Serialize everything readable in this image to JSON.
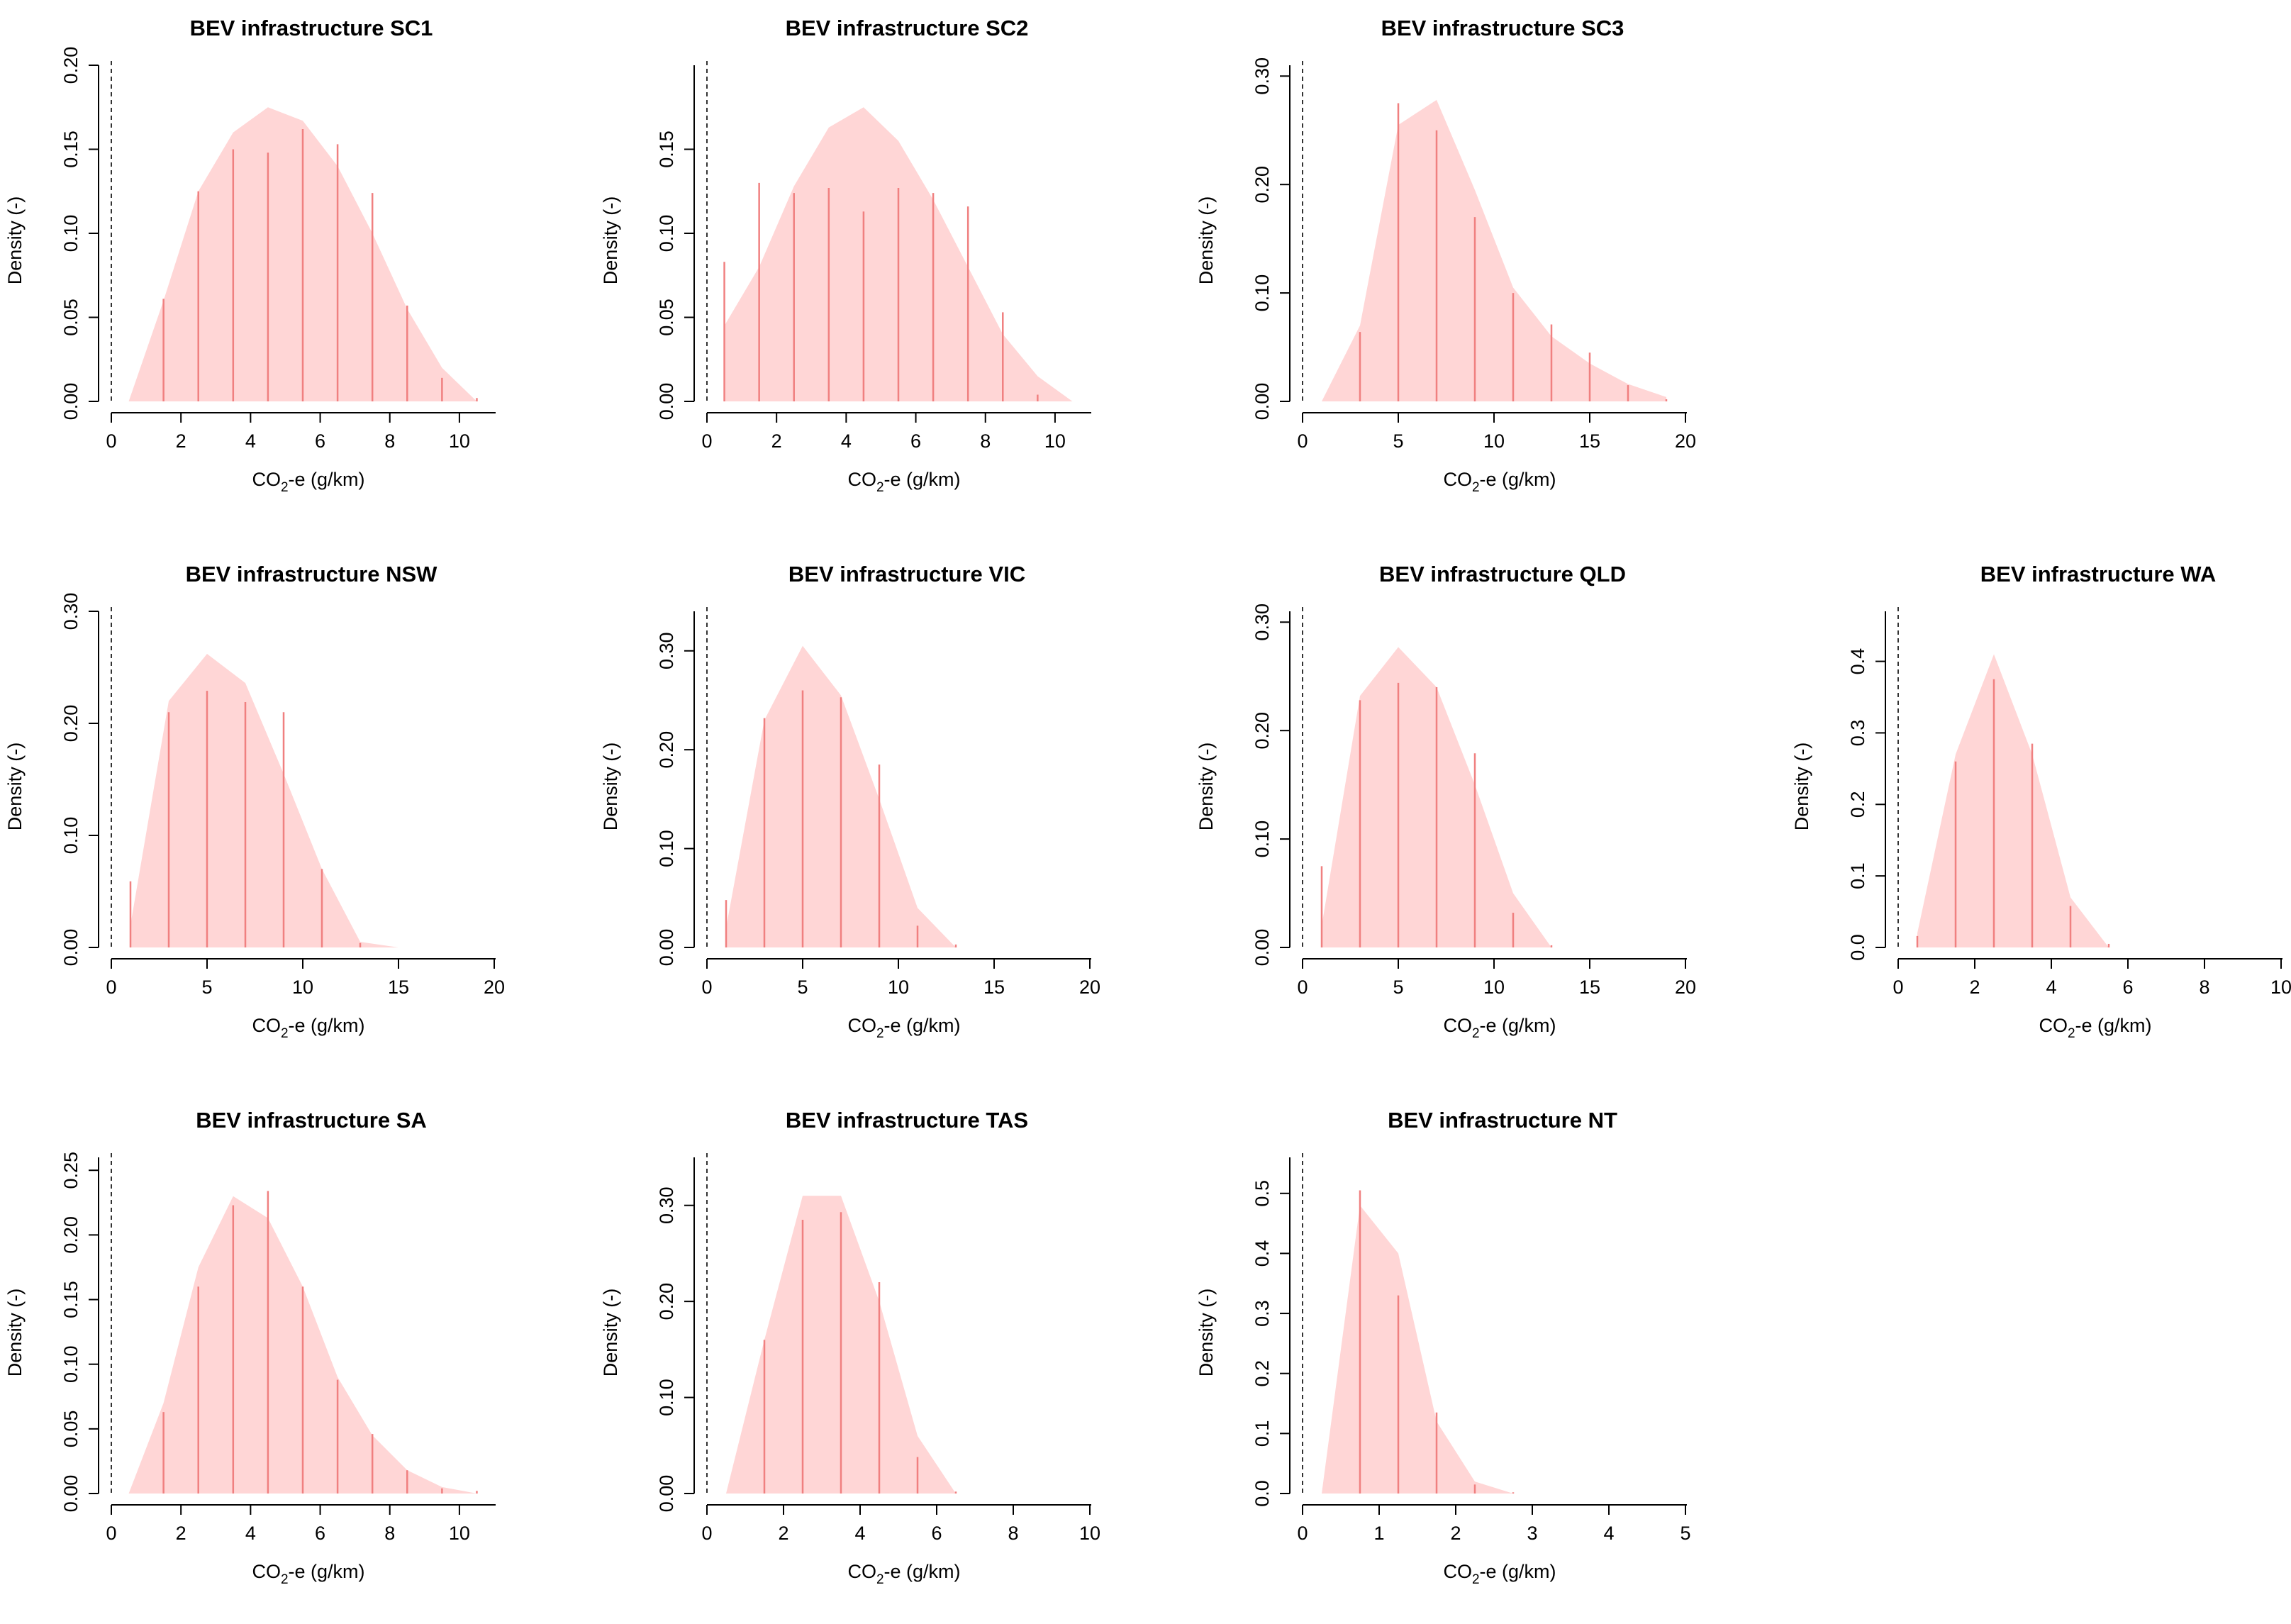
{
  "colors": {
    "fill": "#ffd6d6",
    "spike": "#f08080",
    "axis": "#000000",
    "zero_line": "#333333"
  },
  "chart_data": [
    {
      "type": "area",
      "title": "BEV infrastructure SC1",
      "xlabel_main": "CO",
      "xlabel_sub": "2",
      "xlabel_rest": "-e (g/km)",
      "ylabel": "Density (-)",
      "xlim": [
        0,
        11
      ],
      "ylim": [
        0,
        0.2
      ],
      "xticks": [
        0,
        2,
        4,
        6,
        8,
        10
      ],
      "xtick_labels": [
        "0",
        "2",
        "4",
        "6",
        "8",
        "10"
      ],
      "yticks": [
        0,
        0.05,
        0.1,
        0.15,
        0.2
      ],
      "ytick_labels": [
        "0.00",
        "0.05",
        "0.10",
        "0.15",
        "0.20"
      ],
      "density_x": [
        0.5,
        1.5,
        2.5,
        3.5,
        4.5,
        5.5,
        6.5,
        7.5,
        8.5,
        9.5,
        10.5
      ],
      "density_y": [
        0,
        0.06,
        0.125,
        0.16,
        0.175,
        0.167,
        0.14,
        0.1,
        0.055,
        0.02,
        0
      ],
      "spike_x": [
        1.5,
        2.5,
        3.5,
        4.5,
        5.5,
        6.5,
        7.5,
        8.5,
        9.5,
        10.5
      ],
      "spike_y": [
        0.061,
        0.125,
        0.15,
        0.148,
        0.162,
        0.153,
        0.124,
        0.057,
        0.014,
        0.002
      ]
    },
    {
      "type": "area",
      "title": "BEV infrastructure SC2",
      "xlabel_main": "CO",
      "xlabel_sub": "2",
      "xlabel_rest": "-e (g/km)",
      "ylabel": "Density (-)",
      "xlim": [
        0,
        11
      ],
      "ylim": [
        0,
        0.2
      ],
      "xticks": [
        0,
        2,
        4,
        6,
        8,
        10
      ],
      "xtick_labels": [
        "0",
        "2",
        "4",
        "6",
        "8",
        "10"
      ],
      "yticks": [
        0,
        0.05,
        0.1,
        0.15
      ],
      "ytick_labels": [
        "0.00",
        "0.05",
        "0.10",
        "0.15"
      ],
      "density_x": [
        0.5,
        1.5,
        2.5,
        3.5,
        4.5,
        5.5,
        6.5,
        7.5,
        8.5,
        9.5,
        10.5
      ],
      "density_y": [
        0.045,
        0.08,
        0.128,
        0.163,
        0.175,
        0.155,
        0.12,
        0.08,
        0.04,
        0.015,
        0
      ],
      "spike_x": [
        0.5,
        1.5,
        2.5,
        3.5,
        4.5,
        5.5,
        6.5,
        7.5,
        8.5,
        9.5
      ],
      "spike_y": [
        0.083,
        0.13,
        0.124,
        0.127,
        0.113,
        0.127,
        0.124,
        0.116,
        0.053,
        0.004
      ]
    },
    {
      "type": "area",
      "title": "BEV infrastructure SC3",
      "xlabel_main": "CO",
      "xlabel_sub": "2",
      "xlabel_rest": "-e (g/km)",
      "ylabel": "Density (-)",
      "xlim": [
        0,
        20
      ],
      "ylim": [
        0,
        0.31
      ],
      "xticks": [
        0,
        5,
        10,
        15,
        20
      ],
      "xtick_labels": [
        "0",
        "5",
        "10",
        "15",
        "20"
      ],
      "yticks": [
        0,
        0.1,
        0.2,
        0.3
      ],
      "ytick_labels": [
        "0.00",
        "0.10",
        "0.20",
        "0.30"
      ],
      "density_x": [
        1,
        3,
        5,
        7,
        9,
        11,
        13,
        15,
        17,
        19
      ],
      "density_y": [
        0,
        0.07,
        0.255,
        0.278,
        0.195,
        0.105,
        0.06,
        0.035,
        0.016,
        0.004
      ],
      "spike_x": [
        3,
        5,
        7,
        9,
        11,
        13,
        15,
        17,
        19
      ],
      "spike_y": [
        0.064,
        0.275,
        0.25,
        0.17,
        0.1,
        0.071,
        0.045,
        0.015,
        0.002
      ]
    },
    null,
    {
      "type": "area",
      "title": "BEV infrastructure NSW",
      "xlabel_main": "CO",
      "xlabel_sub": "2",
      "xlabel_rest": "-e (g/km)",
      "ylabel": "Density (-)",
      "xlim": [
        0,
        20
      ],
      "ylim": [
        0,
        0.3
      ],
      "xticks": [
        0,
        5,
        10,
        15,
        20
      ],
      "xtick_labels": [
        "0",
        "5",
        "10",
        "15",
        "20"
      ],
      "yticks": [
        0,
        0.1,
        0.2,
        0.3
      ],
      "ytick_labels": [
        "0.00",
        "0.10",
        "0.20",
        "0.30"
      ],
      "density_x": [
        1,
        3,
        5,
        7,
        9,
        11,
        13,
        15
      ],
      "density_y": [
        0.02,
        0.22,
        0.262,
        0.236,
        0.155,
        0.07,
        0.005,
        0
      ],
      "spike_x": [
        1,
        3,
        5,
        7,
        9,
        11,
        13
      ],
      "spike_y": [
        0.059,
        0.21,
        0.229,
        0.219,
        0.21,
        0.07,
        0.004
      ]
    },
    {
      "type": "area",
      "title": "BEV infrastructure VIC",
      "xlabel_main": "CO",
      "xlabel_sub": "2",
      "xlabel_rest": "-e (g/km)",
      "ylabel": "Density (-)",
      "xlim": [
        0,
        20
      ],
      "ylim": [
        0,
        0.34
      ],
      "xticks": [
        0,
        5,
        10,
        15,
        20
      ],
      "xtick_labels": [
        "0",
        "5",
        "10",
        "15",
        "20"
      ],
      "yticks": [
        0,
        0.1,
        0.2,
        0.3
      ],
      "ytick_labels": [
        "0.00",
        "0.10",
        "0.20",
        "0.30"
      ],
      "density_x": [
        1,
        3,
        5,
        7,
        9,
        11,
        13
      ],
      "density_y": [
        0.02,
        0.23,
        0.305,
        0.255,
        0.15,
        0.04,
        0
      ],
      "spike_x": [
        1,
        3,
        5,
        7,
        9,
        11,
        13
      ],
      "spike_y": [
        0.048,
        0.232,
        0.26,
        0.253,
        0.185,
        0.022,
        0.003
      ]
    },
    {
      "type": "area",
      "title": "BEV infrastructure QLD",
      "xlabel_main": "CO",
      "xlabel_sub": "2",
      "xlabel_rest": "-e (g/km)",
      "ylabel": "Density (-)",
      "xlim": [
        0,
        20
      ],
      "ylim": [
        0,
        0.31
      ],
      "xticks": [
        0,
        5,
        10,
        15,
        20
      ],
      "xtick_labels": [
        "0",
        "5",
        "10",
        "15",
        "20"
      ],
      "yticks": [
        0,
        0.1,
        0.2,
        0.3
      ],
      "ytick_labels": [
        "0.00",
        "0.10",
        "0.20",
        "0.30"
      ],
      "density_x": [
        1,
        3,
        5,
        7,
        9,
        11,
        13
      ],
      "density_y": [
        0.02,
        0.232,
        0.277,
        0.24,
        0.15,
        0.05,
        0
      ],
      "spike_x": [
        1,
        3,
        5,
        7,
        9,
        11,
        13
      ],
      "spike_y": [
        0.075,
        0.228,
        0.244,
        0.24,
        0.179,
        0.032,
        0.002
      ]
    },
    {
      "type": "area",
      "title": "BEV infrastructure WA",
      "xlabel_main": "CO",
      "xlabel_sub": "2",
      "xlabel_rest": "-e (g/km)",
      "ylabel": "Density (-)",
      "xlim": [
        0,
        10
      ],
      "ylim": [
        0,
        0.47
      ],
      "xticks": [
        0,
        2,
        4,
        6,
        8,
        10
      ],
      "xtick_labels": [
        "0",
        "2",
        "4",
        "6",
        "8",
        "10"
      ],
      "yticks": [
        0,
        0.1,
        0.2,
        0.3,
        0.4
      ],
      "ytick_labels": [
        "0.0",
        "0.1",
        "0.2",
        "0.3",
        "0.4"
      ],
      "density_x": [
        0.5,
        1.5,
        2.5,
        3.5,
        4.5,
        5.5
      ],
      "density_y": [
        0.02,
        0.27,
        0.41,
        0.27,
        0.07,
        0
      ],
      "spike_x": [
        0.5,
        1.5,
        2.5,
        3.5,
        4.5,
        5.5
      ],
      "spike_y": [
        0.016,
        0.26,
        0.375,
        0.285,
        0.058,
        0.005
      ]
    },
    {
      "type": "area",
      "title": "BEV infrastructure SA",
      "xlabel_main": "CO",
      "xlabel_sub": "2",
      "xlabel_rest": "-e (g/km)",
      "ylabel": "Density (-)",
      "xlim": [
        0,
        11
      ],
      "ylim": [
        0,
        0.26
      ],
      "xticks": [
        0,
        2,
        4,
        6,
        8,
        10
      ],
      "xtick_labels": [
        "0",
        "2",
        "4",
        "6",
        "8",
        "10"
      ],
      "yticks": [
        0,
        0.05,
        0.1,
        0.15,
        0.2,
        0.25
      ],
      "ytick_labels": [
        "0.00",
        "0.05",
        "0.10",
        "0.15",
        "0.20",
        "0.25"
      ],
      "density_x": [
        0.5,
        1.5,
        2.5,
        3.5,
        4.5,
        5.5,
        6.5,
        7.5,
        8.5,
        9.5,
        10.5
      ],
      "density_y": [
        0,
        0.07,
        0.175,
        0.23,
        0.213,
        0.16,
        0.09,
        0.045,
        0.018,
        0.005,
        0
      ],
      "spike_x": [
        1.5,
        2.5,
        3.5,
        4.5,
        5.5,
        6.5,
        7.5,
        8.5,
        9.5,
        10.5
      ],
      "spike_y": [
        0.063,
        0.16,
        0.223,
        0.234,
        0.16,
        0.088,
        0.046,
        0.018,
        0.004,
        0.002
      ]
    },
    {
      "type": "area",
      "title": "BEV infrastructure TAS",
      "xlabel_main": "CO",
      "xlabel_sub": "2",
      "xlabel_rest": "-e (g/km)",
      "ylabel": "Density (-)",
      "xlim": [
        0,
        10
      ],
      "ylim": [
        0,
        0.35
      ],
      "xticks": [
        0,
        2,
        4,
        6,
        8,
        10
      ],
      "xtick_labels": [
        "0",
        "2",
        "4",
        "6",
        "8",
        "10"
      ],
      "yticks": [
        0,
        0.1,
        0.2,
        0.3
      ],
      "ytick_labels": [
        "0.00",
        "0.10",
        "0.20",
        "0.30"
      ],
      "density_x": [
        0.5,
        1.5,
        2.5,
        3.5,
        4.5,
        5.5,
        6.5
      ],
      "density_y": [
        0,
        0.16,
        0.31,
        0.31,
        0.2,
        0.06,
        0
      ],
      "spike_x": [
        1.5,
        2.5,
        3.5,
        4.5,
        5.5,
        6.5
      ],
      "spike_y": [
        0.16,
        0.285,
        0.293,
        0.22,
        0.038,
        0.002
      ]
    },
    {
      "type": "area",
      "title": "BEV infrastructure NT",
      "xlabel_main": "CO",
      "xlabel_sub": "2",
      "xlabel_rest": "-e (g/km)",
      "ylabel": "Density (-)",
      "xlim": [
        0,
        5
      ],
      "ylim": [
        0,
        0.56
      ],
      "xticks": [
        0,
        1,
        2,
        3,
        4,
        5
      ],
      "xtick_labels": [
        "0",
        "1",
        "2",
        "3",
        "4",
        "5"
      ],
      "yticks": [
        0,
        0.1,
        0.2,
        0.3,
        0.4,
        0.5
      ],
      "ytick_labels": [
        "0.0",
        "0.1",
        "0.2",
        "0.3",
        "0.4",
        "0.5"
      ],
      "density_x": [
        0.25,
        0.75,
        1.25,
        1.75,
        2.25,
        2.75
      ],
      "density_y": [
        0,
        0.48,
        0.4,
        0.12,
        0.02,
        0
      ],
      "spike_x": [
        0.75,
        1.25,
        1.75,
        2.25,
        2.75
      ],
      "spike_y": [
        0.505,
        0.33,
        0.135,
        0.015,
        0.002
      ]
    }
  ]
}
